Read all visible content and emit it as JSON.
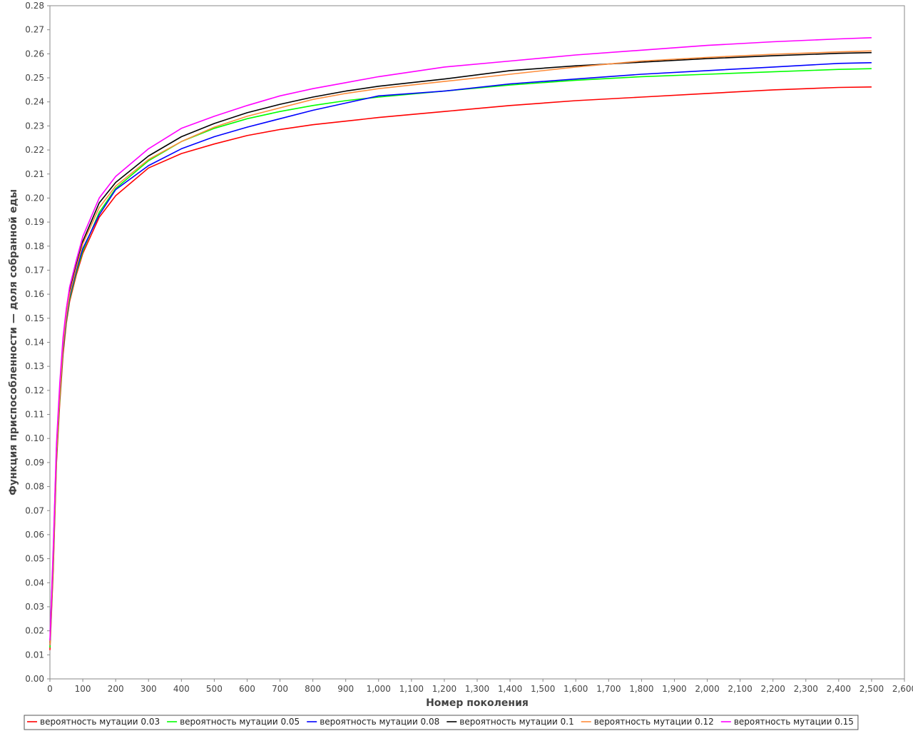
{
  "chart_data": {
    "type": "line",
    "title": "",
    "xlabel": "Номер поколения",
    "ylabel": "Функция приспособленности — доля собранной еды",
    "xlim": [
      0,
      2600
    ],
    "ylim": [
      0,
      0.28
    ],
    "x_ticks": [
      0,
      100,
      200,
      300,
      400,
      500,
      600,
      700,
      800,
      900,
      1000,
      1100,
      1200,
      1300,
      1400,
      1500,
      1600,
      1700,
      1800,
      1900,
      2000,
      2100,
      2200,
      2300,
      2400,
      2500,
      2600
    ],
    "x_tick_labels": [
      "0",
      "100",
      "200",
      "300",
      "400",
      "500",
      "600",
      "700",
      "800",
      "900",
      "1,000",
      "1,100",
      "1,200",
      "1,300",
      "1,400",
      "1,500",
      "1,600",
      "1,700",
      "1,800",
      "1,900",
      "2,000",
      "2,100",
      "2,200",
      "2,300",
      "2,400",
      "2,500",
      "2,600"
    ],
    "y_ticks": [
      0,
      0.01,
      0.02,
      0.03,
      0.04,
      0.05,
      0.06,
      0.07,
      0.08,
      0.09,
      0.1,
      0.11,
      0.12,
      0.13,
      0.14,
      0.15,
      0.16,
      0.17,
      0.18,
      0.19,
      0.2,
      0.21,
      0.22,
      0.23,
      0.24,
      0.25,
      0.26,
      0.27,
      0.28
    ],
    "y_tick_labels": [
      "0.00",
      "0.01",
      "0.02",
      "0.03",
      "0.04",
      "0.05",
      "0.06",
      "0.07",
      "0.08",
      "0.09",
      "0.10",
      "0.11",
      "0.12",
      "0.13",
      "0.14",
      "0.15",
      "0.16",
      "0.17",
      "0.18",
      "0.19",
      "0.20",
      "0.21",
      "0.22",
      "0.23",
      "0.24",
      "0.25",
      "0.26",
      "0.27",
      "0.28"
    ],
    "grid": false,
    "legend_position": "bottom",
    "series": [
      {
        "name": "вероятность мутации 0.03",
        "color": "#ff0000",
        "x": [
          0,
          10,
          20,
          30,
          40,
          50,
          60,
          80,
          100,
          150,
          200,
          300,
          400,
          500,
          600,
          700,
          800,
          900,
          1000,
          1200,
          1400,
          1600,
          1800,
          2000,
          2200,
          2400,
          2500
        ],
        "y": [
          0.012,
          0.045,
          0.09,
          0.115,
          0.135,
          0.148,
          0.157,
          0.168,
          0.177,
          0.192,
          0.201,
          0.2125,
          0.2185,
          0.2225,
          0.226,
          0.2285,
          0.2305,
          0.232,
          0.2335,
          0.236,
          0.2385,
          0.2405,
          0.242,
          0.2435,
          0.245,
          0.246,
          0.2462
        ]
      },
      {
        "name": "вероятность мутации 0.05",
        "color": "#00ff00",
        "x": [
          0,
          10,
          20,
          30,
          40,
          50,
          60,
          80,
          100,
          150,
          200,
          300,
          400,
          500,
          600,
          700,
          800,
          900,
          1000,
          1200,
          1400,
          1600,
          1800,
          2000,
          2200,
          2400,
          2500
        ],
        "y": [
          0.013,
          0.048,
          0.092,
          0.117,
          0.137,
          0.149,
          0.158,
          0.169,
          0.178,
          0.194,
          0.204,
          0.2155,
          0.2235,
          0.229,
          0.233,
          0.236,
          0.2385,
          0.2405,
          0.242,
          0.2445,
          0.247,
          0.249,
          0.2505,
          0.2515,
          0.2525,
          0.2535,
          0.2538
        ]
      },
      {
        "name": "вероятность мутации 0.08",
        "color": "#0000ff",
        "x": [
          0,
          10,
          20,
          30,
          40,
          50,
          60,
          80,
          100,
          150,
          200,
          300,
          400,
          500,
          600,
          700,
          800,
          900,
          1000,
          1200,
          1400,
          1600,
          1800,
          2000,
          2200,
          2400,
          2500
        ],
        "y": [
          0.014,
          0.05,
          0.094,
          0.119,
          0.138,
          0.15,
          0.159,
          0.17,
          0.179,
          0.193,
          0.2035,
          0.2135,
          0.2205,
          0.2255,
          0.2295,
          0.233,
          0.2365,
          0.2395,
          0.2425,
          0.2445,
          0.2475,
          0.2495,
          0.2515,
          0.253,
          0.2545,
          0.256,
          0.2563
        ]
      },
      {
        "name": "вероятность мутации 0.1",
        "color": "#000000",
        "x": [
          0,
          10,
          20,
          30,
          40,
          50,
          60,
          80,
          100,
          150,
          200,
          300,
          400,
          500,
          600,
          700,
          800,
          900,
          1000,
          1200,
          1400,
          1600,
          1800,
          2000,
          2200,
          2400,
          2500
        ],
        "y": [
          0.015,
          0.052,
          0.096,
          0.121,
          0.14,
          0.152,
          0.161,
          0.172,
          0.182,
          0.198,
          0.2065,
          0.2175,
          0.2255,
          0.231,
          0.2355,
          0.239,
          0.242,
          0.2445,
          0.2465,
          0.2495,
          0.253,
          0.255,
          0.2565,
          0.258,
          0.2592,
          0.2602,
          0.2605
        ]
      },
      {
        "name": "вероятность мутации 0.12",
        "color": "#ff8c3a",
        "x": [
          0,
          10,
          20,
          30,
          40,
          50,
          60,
          80,
          100,
          150,
          200,
          300,
          400,
          500,
          600,
          700,
          800,
          900,
          1000,
          1200,
          1400,
          1600,
          1800,
          2000,
          2200,
          2400,
          2500
        ],
        "y": [
          0.014,
          0.05,
          0.094,
          0.119,
          0.139,
          0.151,
          0.16,
          0.171,
          0.181,
          0.196,
          0.205,
          0.216,
          0.2235,
          0.2295,
          0.234,
          0.2375,
          0.241,
          0.2435,
          0.2455,
          0.2485,
          0.2515,
          0.2545,
          0.257,
          0.2585,
          0.2598,
          0.2608,
          0.2612
        ]
      },
      {
        "name": "вероятность мутации 0.15",
        "color": "#ff00ff",
        "x": [
          0,
          10,
          20,
          30,
          40,
          50,
          60,
          80,
          100,
          150,
          200,
          300,
          400,
          500,
          600,
          700,
          800,
          900,
          1000,
          1200,
          1400,
          1600,
          1800,
          2000,
          2200,
          2400,
          2500
        ],
        "y": [
          0.016,
          0.054,
          0.098,
          0.123,
          0.142,
          0.154,
          0.163,
          0.174,
          0.184,
          0.2,
          0.209,
          0.2205,
          0.229,
          0.234,
          0.2385,
          0.2425,
          0.2455,
          0.248,
          0.2505,
          0.2545,
          0.257,
          0.2595,
          0.2615,
          0.2635,
          0.265,
          0.2662,
          0.2667
        ]
      }
    ]
  }
}
